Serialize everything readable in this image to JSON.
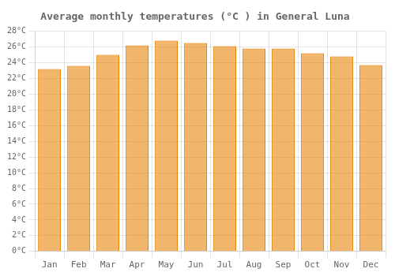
{
  "chart_data": {
    "type": "bar",
    "title": "Average monthly temperatures (°C ) in General Luna",
    "categories": [
      "Jan",
      "Feb",
      "Mar",
      "Apr",
      "May",
      "Jun",
      "Jul",
      "Aug",
      "Sep",
      "Oct",
      "Nov",
      "Dec"
    ],
    "values": [
      23.2,
      23.6,
      25.0,
      26.2,
      26.8,
      26.5,
      26.1,
      25.8,
      25.8,
      25.2,
      24.8,
      23.7
    ],
    "color": "#E8860A",
    "ylim": [
      0,
      28
    ],
    "yticks": [
      {
        "value": 0,
        "label": "0°C"
      },
      {
        "value": 2,
        "label": "2°C"
      },
      {
        "value": 4,
        "label": "4°C"
      },
      {
        "value": 6,
        "label": "6°C"
      },
      {
        "value": 8,
        "label": "8°C"
      },
      {
        "value": 10,
        "label": "10°C"
      },
      {
        "value": 12,
        "label": "12°C"
      },
      {
        "value": 14,
        "label": "14°C"
      },
      {
        "value": 16,
        "label": "16°C"
      },
      {
        "value": 18,
        "label": "18°C"
      },
      {
        "value": 20,
        "label": "20°C"
      },
      {
        "value": 22,
        "label": "22°C"
      },
      {
        "value": 24,
        "label": "24°C"
      },
      {
        "value": 26,
        "label": "26°C"
      },
      {
        "value": 28,
        "label": "28°C"
      }
    ],
    "grid": true
  }
}
